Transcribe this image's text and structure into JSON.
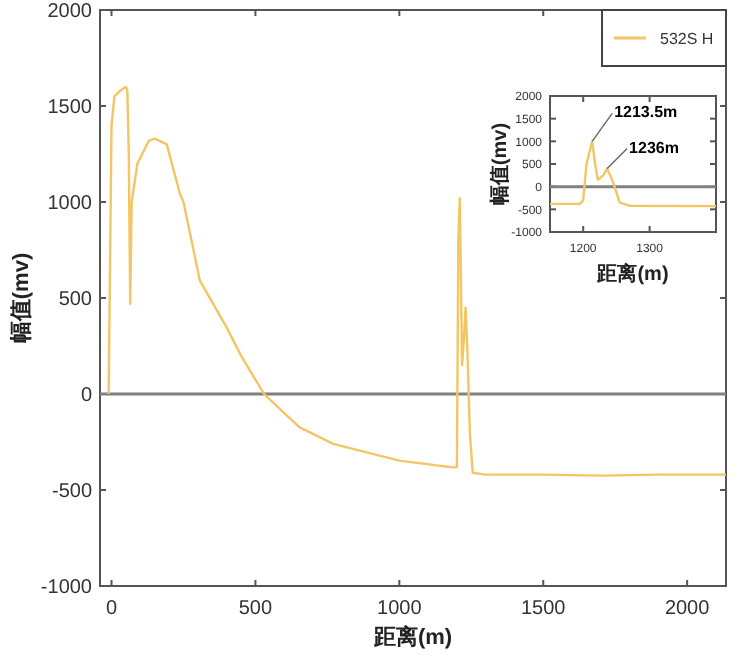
{
  "chart_data": [
    {
      "type": "line",
      "xlabel": "距离(m)",
      "ylabel": "幅值(mv)",
      "xlim": [
        -40,
        2135
      ],
      "ylim": [
        -1000,
        2000
      ],
      "xticks": [
        0,
        500,
        1000,
        1500,
        2000
      ],
      "yticks": [
        -1000,
        -500,
        0,
        500,
        1000,
        1500,
        2000
      ],
      "legend": "top right",
      "grid": false,
      "ref_lines": [
        {
          "axis": "y",
          "value": 0,
          "color": "#808080"
        }
      ],
      "series": [
        {
          "name": "532S H",
          "color": "#f3c565",
          "x": [
            -10,
            0,
            10,
            30,
            50,
            55,
            60,
            65,
            70,
            90,
            130,
            150,
            192,
            238,
            250,
            307,
            400,
            450,
            530,
            600,
            654,
            770,
            1000,
            1185,
            1200,
            1205,
            1210,
            1213,
            1218,
            1225,
            1230,
            1236,
            1245,
            1255,
            1300,
            1500,
            1700,
            1900,
            2135
          ],
          "values": [
            0,
            1400,
            1550,
            1580,
            1600,
            1580,
            1250,
            470,
            1000,
            1200,
            1320,
            1330,
            1300,
            1042,
            1000,
            590,
            347,
            200,
            0,
            -100,
            -174,
            -260,
            -347,
            -382,
            -380,
            800,
            1020,
            700,
            150,
            300,
            450,
            250,
            -200,
            -410,
            -420,
            -420,
            -425,
            -420,
            -420
          ]
        }
      ]
    },
    {
      "type": "line",
      "xlabel": "距离(m)",
      "ylabel": "幅值(mv)",
      "xlim": [
        1150,
        1400
      ],
      "ylim": [
        -1000,
        2000
      ],
      "xticks": [
        1200,
        1300
      ],
      "yticks": [
        -1000,
        -500,
        0,
        500,
        1000,
        1500,
        2000
      ],
      "grid": false,
      "ref_lines": [
        {
          "axis": "y",
          "value": 0,
          "color": "#808080"
        }
      ],
      "annotations": [
        {
          "text": "1213.5m",
          "x": 1213.5,
          "y": 1000
        },
        {
          "text": "1236m",
          "x": 1236,
          "y": 400
        }
      ],
      "series": [
        {
          "color": "#f3c565",
          "x": [
            1150,
            1195,
            1200,
            1205,
            1213.5,
            1218,
            1222,
            1230,
            1236,
            1245,
            1255,
            1270,
            1400
          ],
          "values": [
            -380,
            -380,
            -300,
            500,
            1000,
            500,
            150,
            250,
            400,
            100,
            -350,
            -420,
            -430
          ]
        }
      ]
    }
  ]
}
